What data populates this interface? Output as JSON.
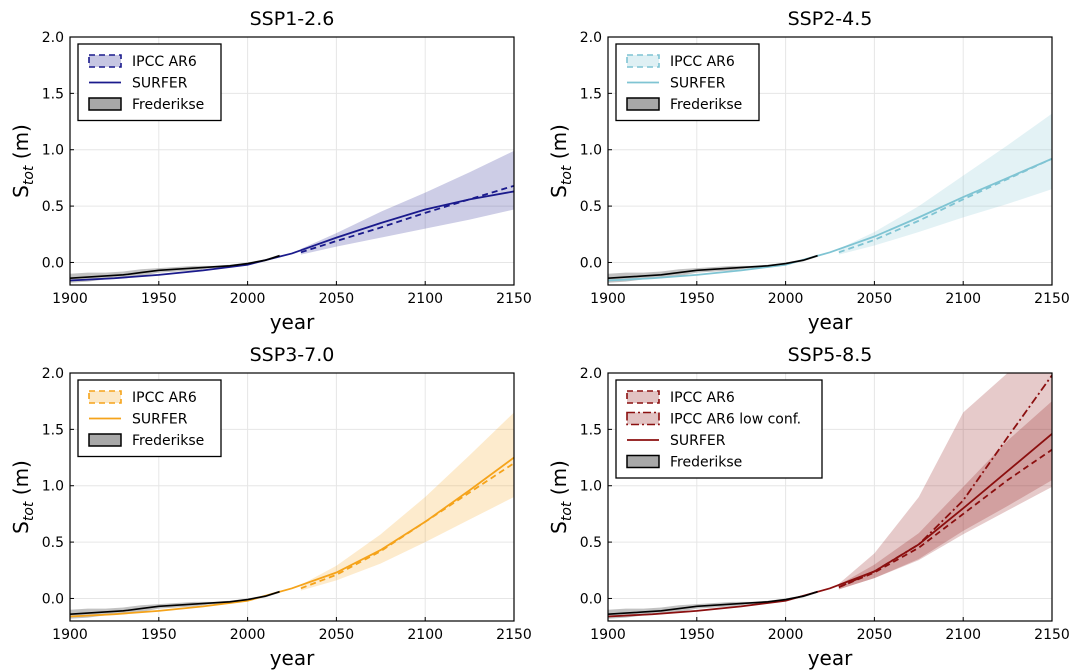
{
  "chart_data": [
    {
      "type": "line",
      "title": "SSP1-2.6",
      "xlabel": "year",
      "ylabel": "S_tot (m)",
      "xlim": [
        1900,
        2150
      ],
      "ylim": [
        -0.2,
        2.0
      ],
      "xticks": [
        1900,
        1950,
        2000,
        2050,
        2100,
        2150
      ],
      "yticks": [
        0.0,
        0.5,
        1.0,
        1.5,
        2.0
      ],
      "ytick_labels": [
        "0.0",
        "0.5",
        "1.0",
        "1.5",
        "2.0"
      ],
      "grid": true,
      "legend_position": "top-left",
      "color": "#1a1a8c",
      "legend": [
        "IPCC AR6",
        "SURFER",
        "Frederikse"
      ],
      "series": [
        {
          "name": "IPCC AR6",
          "style": "dashed",
          "x": [
            2030,
            2050,
            2075,
            2100,
            2125,
            2150
          ],
          "y": [
            0.09,
            0.19,
            0.31,
            0.44,
            0.56,
            0.68
          ],
          "band_lower": [
            0.07,
            0.14,
            0.22,
            0.3,
            0.38,
            0.47
          ],
          "band_upper": [
            0.12,
            0.26,
            0.45,
            0.62,
            0.8,
            0.99
          ]
        },
        {
          "name": "SURFER",
          "style": "solid",
          "x": [
            1900,
            1925,
            1950,
            1975,
            2000,
            2025,
            2050,
            2075,
            2100,
            2125,
            2150
          ],
          "y": [
            -0.16,
            -0.14,
            -0.11,
            -0.07,
            -0.02,
            0.08,
            0.22,
            0.35,
            0.47,
            0.56,
            0.63
          ]
        },
        {
          "name": "Frederikse",
          "style": "observed",
          "x": [
            1900,
            1910,
            1920,
            1930,
            1940,
            1950,
            1960,
            1970,
            1980,
            1990,
            2000,
            2010,
            2018
          ],
          "y": [
            -0.14,
            -0.13,
            -0.12,
            -0.11,
            -0.09,
            -0.07,
            -0.06,
            -0.05,
            -0.04,
            -0.03,
            -0.01,
            0.02,
            0.06
          ],
          "band_lower": [
            -0.18,
            -0.17,
            -0.15,
            -0.14,
            -0.12,
            -0.09,
            -0.08,
            -0.07,
            -0.05,
            -0.04,
            -0.02,
            0.01,
            0.05
          ],
          "band_upper": [
            -0.1,
            -0.09,
            -0.09,
            -0.08,
            -0.06,
            -0.05,
            -0.04,
            -0.03,
            -0.03,
            -0.02,
            0.0,
            0.03,
            0.07
          ]
        }
      ]
    },
    {
      "type": "line",
      "title": "SSP2-4.5",
      "xlabel": "year",
      "ylabel": "S_tot (m)",
      "xlim": [
        1900,
        2150
      ],
      "ylim": [
        -0.2,
        2.0
      ],
      "xticks": [
        1900,
        1950,
        2000,
        2050,
        2100,
        2150
      ],
      "yticks": [
        0.0,
        0.5,
        1.0,
        1.5,
        2.0
      ],
      "ytick_labels": [
        "0.0",
        "0.5",
        "1.0",
        "1.5",
        "2.0"
      ],
      "grid": true,
      "legend_position": "top-left",
      "color": "#7fc4d3",
      "legend": [
        "IPCC AR6",
        "SURFER",
        "Frederikse"
      ],
      "series": [
        {
          "name": "IPCC AR6",
          "style": "dashed",
          "x": [
            2030,
            2050,
            2075,
            2100,
            2125,
            2150
          ],
          "y": [
            0.09,
            0.2,
            0.37,
            0.56,
            0.74,
            0.92
          ],
          "band_lower": [
            0.07,
            0.15,
            0.27,
            0.4,
            0.52,
            0.65
          ],
          "band_upper": [
            0.12,
            0.27,
            0.5,
            0.77,
            1.04,
            1.32
          ]
        },
        {
          "name": "SURFER",
          "style": "solid",
          "x": [
            1900,
            1925,
            1950,
            1975,
            2000,
            2025,
            2050,
            2075,
            2100,
            2125,
            2150
          ],
          "y": [
            -0.16,
            -0.14,
            -0.11,
            -0.07,
            -0.02,
            0.09,
            0.23,
            0.4,
            0.58,
            0.75,
            0.92
          ]
        },
        {
          "name": "Frederikse",
          "style": "observed",
          "x": [
            1900,
            1910,
            1920,
            1930,
            1940,
            1950,
            1960,
            1970,
            1980,
            1990,
            2000,
            2010,
            2018
          ],
          "y": [
            -0.14,
            -0.13,
            -0.12,
            -0.11,
            -0.09,
            -0.07,
            -0.06,
            -0.05,
            -0.04,
            -0.03,
            -0.01,
            0.02,
            0.06
          ],
          "band_lower": [
            -0.18,
            -0.17,
            -0.15,
            -0.14,
            -0.12,
            -0.09,
            -0.08,
            -0.07,
            -0.05,
            -0.04,
            -0.02,
            0.01,
            0.05
          ],
          "band_upper": [
            -0.1,
            -0.09,
            -0.09,
            -0.08,
            -0.06,
            -0.05,
            -0.04,
            -0.03,
            -0.03,
            -0.02,
            0.0,
            0.03,
            0.07
          ]
        }
      ]
    },
    {
      "type": "line",
      "title": "SSP3-7.0",
      "xlabel": "year",
      "ylabel": "S_tot (m)",
      "xlim": [
        1900,
        2150
      ],
      "ylim": [
        -0.2,
        2.0
      ],
      "xticks": [
        1900,
        1950,
        2000,
        2050,
        2100,
        2150
      ],
      "yticks": [
        0.0,
        0.5,
        1.0,
        1.5,
        2.0
      ],
      "ytick_labels": [
        "0.0",
        "0.5",
        "1.0",
        "1.5",
        "2.0"
      ],
      "grid": true,
      "legend_position": "top-left",
      "color": "#f5a31a",
      "legend": [
        "IPCC AR6",
        "SURFER",
        "Frederikse"
      ],
      "series": [
        {
          "name": "IPCC AR6",
          "style": "dashed",
          "x": [
            2030,
            2050,
            2075,
            2100,
            2125,
            2150
          ],
          "y": [
            0.09,
            0.21,
            0.42,
            0.68,
            0.94,
            1.2
          ],
          "band_lower": [
            0.07,
            0.16,
            0.31,
            0.5,
            0.7,
            0.9
          ],
          "band_upper": [
            0.12,
            0.29,
            0.57,
            0.9,
            1.27,
            1.65
          ]
        },
        {
          "name": "SURFER",
          "style": "solid",
          "x": [
            1900,
            1925,
            1950,
            1975,
            2000,
            2025,
            2050,
            2075,
            2100,
            2125,
            2150
          ],
          "y": [
            -0.16,
            -0.14,
            -0.11,
            -0.07,
            -0.02,
            0.09,
            0.23,
            0.43,
            0.68,
            0.96,
            1.25
          ]
        },
        {
          "name": "Frederikse",
          "style": "observed",
          "x": [
            1900,
            1910,
            1920,
            1930,
            1940,
            1950,
            1960,
            1970,
            1980,
            1990,
            2000,
            2010,
            2018
          ],
          "y": [
            -0.14,
            -0.13,
            -0.12,
            -0.11,
            -0.09,
            -0.07,
            -0.06,
            -0.05,
            -0.04,
            -0.03,
            -0.01,
            0.02,
            0.06
          ],
          "band_lower": [
            -0.18,
            -0.17,
            -0.15,
            -0.14,
            -0.12,
            -0.09,
            -0.08,
            -0.07,
            -0.05,
            -0.04,
            -0.02,
            0.01,
            0.05
          ],
          "band_upper": [
            -0.1,
            -0.09,
            -0.09,
            -0.08,
            -0.06,
            -0.05,
            -0.04,
            -0.03,
            -0.03,
            -0.02,
            0.0,
            0.03,
            0.07
          ]
        }
      ]
    },
    {
      "type": "line",
      "title": "SSP5-8.5",
      "xlabel": "year",
      "ylabel": "S_tot (m)",
      "xlim": [
        1900,
        2150
      ],
      "ylim": [
        -0.2,
        2.0
      ],
      "xticks": [
        1900,
        1950,
        2000,
        2050,
        2100,
        2150
      ],
      "yticks": [
        0.0,
        0.5,
        1.0,
        1.5,
        2.0
      ],
      "ytick_labels": [
        "0.0",
        "0.5",
        "1.0",
        "1.5",
        "2.0"
      ],
      "grid": true,
      "legend_position": "top-left",
      "color": "#8b0f0f",
      "legend": [
        "IPCC AR6",
        "IPCC AR6 low conf.",
        "SURFER",
        "Frederikse"
      ],
      "series": [
        {
          "name": "IPCC AR6",
          "style": "dashed",
          "x": [
            2030,
            2050,
            2075,
            2100,
            2125,
            2150
          ],
          "y": [
            0.1,
            0.23,
            0.45,
            0.75,
            1.05,
            1.32
          ],
          "band_lower": [
            0.08,
            0.18,
            0.34,
            0.57,
            0.78,
            0.99
          ],
          "band_upper": [
            0.12,
            0.3,
            0.58,
            0.99,
            1.4,
            1.75
          ]
        },
        {
          "name": "IPCC AR6 low conf.",
          "style": "dashdot",
          "x": [
            2030,
            2050,
            2075,
            2100,
            2125,
            2150
          ],
          "y": [
            0.1,
            0.24,
            0.48,
            0.87,
            1.43,
            1.98
          ],
          "band_lower": [
            0.08,
            0.18,
            0.35,
            0.6,
            0.82,
            1.05
          ],
          "band_upper": [
            0.13,
            0.4,
            0.9,
            1.65,
            2.0,
            2.0
          ]
        },
        {
          "name": "SURFER",
          "style": "solid",
          "x": [
            1900,
            1925,
            1950,
            1975,
            2000,
            2025,
            2050,
            2075,
            2100,
            2125,
            2150
          ],
          "y": [
            -0.16,
            -0.14,
            -0.11,
            -0.07,
            -0.02,
            0.09,
            0.24,
            0.48,
            0.8,
            1.13,
            1.46
          ]
        },
        {
          "name": "Frederikse",
          "style": "observed",
          "x": [
            1900,
            1910,
            1920,
            1930,
            1940,
            1950,
            1960,
            1970,
            1980,
            1990,
            2000,
            2010,
            2018
          ],
          "y": [
            -0.14,
            -0.13,
            -0.12,
            -0.11,
            -0.09,
            -0.07,
            -0.06,
            -0.05,
            -0.04,
            -0.03,
            -0.01,
            0.02,
            0.06
          ],
          "band_lower": [
            -0.18,
            -0.17,
            -0.15,
            -0.14,
            -0.12,
            -0.09,
            -0.08,
            -0.07,
            -0.05,
            -0.04,
            -0.02,
            0.01,
            0.05
          ],
          "band_upper": [
            -0.1,
            -0.09,
            -0.09,
            -0.08,
            -0.06,
            -0.05,
            -0.04,
            -0.03,
            -0.03,
            -0.02,
            0.0,
            0.03,
            0.07
          ]
        }
      ]
    }
  ]
}
